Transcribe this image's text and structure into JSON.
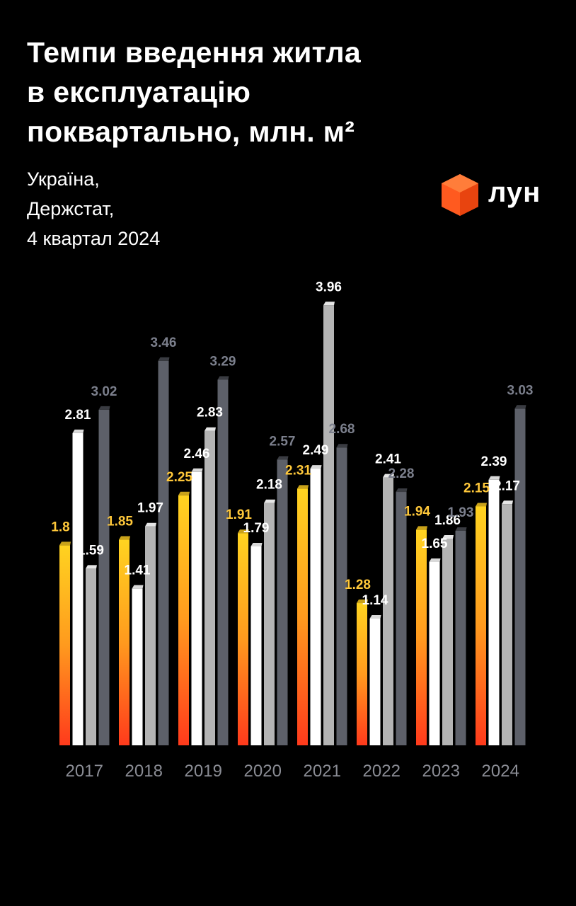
{
  "title_lines": [
    "Темпи введення житла",
    "в експлуатацію",
    "поквартально, млн. м²"
  ],
  "subtitle_lines": [
    "Україна,",
    "Держстат,",
    "4 квартал 2024"
  ],
  "logo": {
    "text": "лун",
    "icon": "orange-cube-icon",
    "color": "#ff5a1f"
  },
  "chart_data": {
    "type": "bar",
    "title": "Темпи введення житла в експлуатацію поквартально, млн. м²",
    "categories": [
      "2017",
      "2018",
      "2019",
      "2020",
      "2021",
      "2022",
      "2023",
      "2024"
    ],
    "series": [
      {
        "values": [
          1.8,
          1.85,
          2.25,
          1.91,
          2.31,
          1.28,
          1.94,
          2.15
        ]
      },
      {
        "values": [
          2.81,
          1.41,
          2.46,
          1.79,
          2.49,
          1.14,
          1.65,
          2.39
        ]
      },
      {
        "values": [
          1.59,
          1.97,
          2.83,
          2.18,
          3.96,
          2.41,
          1.86,
          2.17
        ]
      },
      {
        "values": [
          3.02,
          3.46,
          3.29,
          2.57,
          2.68,
          2.28,
          1.93,
          3.03
        ]
      }
    ],
    "colors": {
      "series1_gradient": [
        "#ffd320",
        "#ff9a1e",
        "#ff3a1c"
      ],
      "series1_label": "#ffc83a",
      "series2_bar": "#ffffff",
      "series2_label": "#ffffff",
      "series3_bar": "#b4b4b4",
      "series3_label": "#ffffff",
      "series4_bar": "#5d6069",
      "series4_label": "#7b7f8c",
      "axis_label": "#8a8c94"
    },
    "ylim": [
      0,
      4.0
    ],
    "grid": false,
    "legend": "none"
  }
}
